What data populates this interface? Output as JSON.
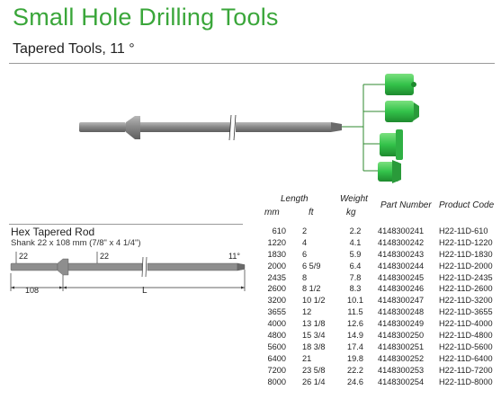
{
  "header": {
    "title": "Small Hole Drilling Tools",
    "subtitle": "Tapered Tools, 11 °"
  },
  "colors": {
    "title_green": "#3aa63a",
    "bit_green": "#33c24a",
    "rod_gray": "#8a8a8a"
  },
  "table": {
    "headers": {
      "length": "Length",
      "mm": "mm",
      "ft": "ft",
      "weight": "Weight",
      "kg": "kg",
      "part_number": "Part Number",
      "product_code": "Product Code"
    },
    "rows": [
      {
        "mm": "610",
        "ft": "2",
        "kg": "2.2",
        "part": "4148300241",
        "code": "H22-11D-610"
      },
      {
        "mm": "1220",
        "ft": "4",
        "kg": "4.1",
        "part": "4148300242",
        "code": "H22-11D-1220"
      },
      {
        "mm": "1830",
        "ft": "6",
        "kg": "5.9",
        "part": "4148300243",
        "code": "H22-11D-1830"
      },
      {
        "mm": "2000",
        "ft": "6 5/9",
        "kg": "6.4",
        "part": "4148300244",
        "code": "H22-11D-2000"
      },
      {
        "mm": "2435",
        "ft": "8",
        "kg": "7.8",
        "part": "4148300245",
        "code": "H22-11D-2435"
      },
      {
        "mm": "2600",
        "ft": "8 1/2",
        "kg": "8.3",
        "part": "4148300246",
        "code": "H22-11D-2600"
      },
      {
        "mm": "3200",
        "ft": "10 1/2",
        "kg": "10.1",
        "part": "4148300247",
        "code": "H22-11D-3200"
      },
      {
        "mm": "3655",
        "ft": "12",
        "kg": "11.5",
        "part": "4148300248",
        "code": "H22-11D-3655"
      },
      {
        "mm": "4000",
        "ft": "13 1/8",
        "kg": "12.6",
        "part": "4148300249",
        "code": "H22-11D-4000"
      },
      {
        "mm": "4800",
        "ft": "15 3/4",
        "kg": "14.9",
        "part": "4148300250",
        "code": "H22-11D-4800"
      },
      {
        "mm": "5600",
        "ft": "18 3/8",
        "kg": "17.4",
        "part": "4148300251",
        "code": "H22-11D-5600"
      },
      {
        "mm": "6400",
        "ft": "21",
        "kg": "19.8",
        "part": "4148300252",
        "code": "H22-11D-6400"
      },
      {
        "mm": "7200",
        "ft": "23 5/8",
        "kg": "22.2",
        "part": "4148300253",
        "code": "H22-11D-7200"
      },
      {
        "mm": "8000",
        "ft": "26 1/4",
        "kg": "24.6",
        "part": "4148300254",
        "code": "H22-11D-8000"
      }
    ]
  },
  "section": {
    "title": "Hex Tapered Rod",
    "subtitle": "Shank 22 x 108 mm (7/8\" x 4 1/4\")"
  },
  "diagram": {
    "dim_22_left": "22",
    "dim_22_mid": "22",
    "dim_108": "108",
    "dim_L": "L",
    "angle": "11°"
  }
}
